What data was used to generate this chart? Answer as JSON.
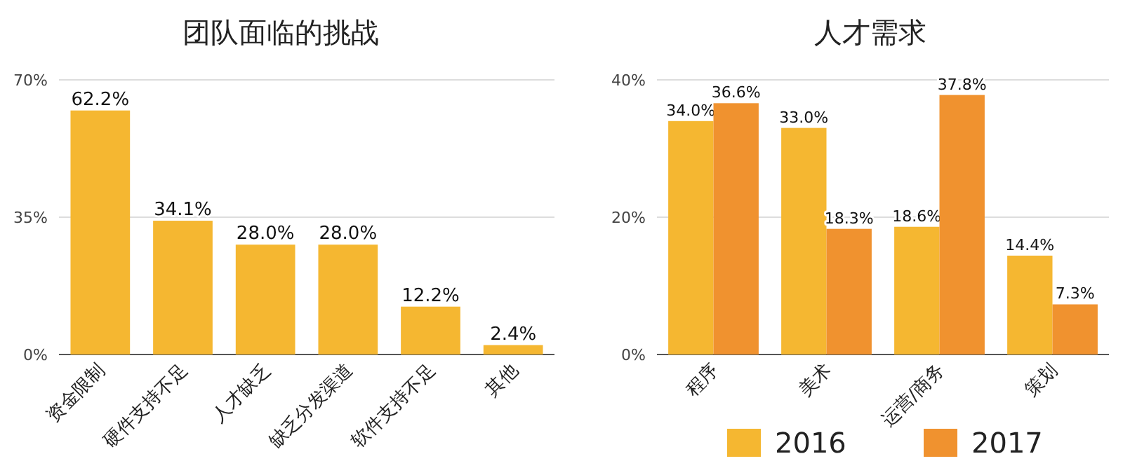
{
  "chart_data": [
    {
      "type": "bar",
      "title": "团队面临的挑战",
      "categories": [
        "资金限制",
        "硬件支持不足",
        "人才缺乏",
        "缺乏分发渠道",
        "软件支持不足",
        "其他"
      ],
      "values": [
        62.2,
        34.1,
        28.0,
        28.0,
        12.2,
        2.4
      ],
      "color": "#f5b731",
      "value_labels": [
        "62.2%",
        "34.1%",
        "28.0%",
        "28.0%",
        "12.2%",
        "2.4%"
      ],
      "ylim": [
        0,
        70
      ],
      "yticks": [
        {
          "value": 0,
          "label": "0%"
        },
        {
          "value": 35,
          "label": "35%"
        },
        {
          "value": 70,
          "label": "70%"
        }
      ],
      "grid": "y",
      "legend": false
    },
    {
      "type": "bar",
      "title": "人才需求",
      "categories": [
        "程序",
        "美术",
        "运营/商务",
        "策划"
      ],
      "series": [
        {
          "name": "2016",
          "color": "#f5b731",
          "values": [
            34.0,
            33.0,
            18.6,
            14.4
          ],
          "value_labels": [
            "34.0%",
            "33.0%",
            "18.6%",
            "14.4%"
          ]
        },
        {
          "name": "2017",
          "color": "#f0922f",
          "values": [
            36.6,
            18.3,
            37.8,
            7.3
          ],
          "value_labels": [
            "36.6%",
            "18.3%",
            "37.8%",
            "7.3%"
          ]
        }
      ],
      "ylim": [
        0,
        40
      ],
      "yticks": [
        {
          "value": 0,
          "label": "0%"
        },
        {
          "value": 20,
          "label": "20%"
        },
        {
          "value": 40,
          "label": "40%"
        }
      ],
      "grid": "y",
      "legend": "bottom"
    }
  ]
}
